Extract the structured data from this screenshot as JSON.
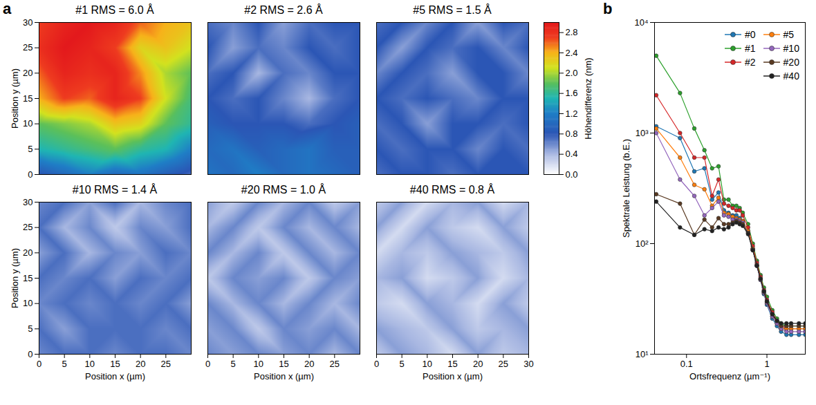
{
  "chart_data": [
    {
      "type": "heatmap",
      "panel": "a",
      "colorbar": {
        "label": "Höhendifferenz (nm)",
        "range": [
          0,
          3.0
        ],
        "ticks": [
          {
            "value": 0,
            "label": "0.0"
          },
          0.4,
          0.8,
          1.2,
          1.6,
          {
            "value": 2,
            "label": "2.0"
          },
          2.4,
          2.8
        ]
      },
      "panels": [
        {
          "title": "#1 RMS = 6.0 Å",
          "ylabel": "Position y (µm)",
          "tick_labels": "y",
          "xlim": [
            0,
            30
          ],
          "ylim": [
            0,
            30
          ],
          "yticks": [
            0,
            5,
            10,
            15,
            20,
            25,
            30
          ],
          "x": [
            0,
            5,
            10,
            15,
            20,
            25,
            30
          ],
          "y": [
            30,
            25,
            20,
            15,
            10,
            5,
            0
          ],
          "z": [
            [
              2.7,
              2.9,
              3.0,
              2.9,
              2.6,
              2.4,
              2.3
            ],
            [
              2.8,
              3.0,
              2.9,
              2.7,
              2.2,
              2.3,
              2.1
            ],
            [
              2.6,
              2.9,
              2.8,
              2.9,
              2.5,
              2.0,
              1.8
            ],
            [
              2.4,
              2.7,
              2.6,
              2.9,
              2.7,
              2.1,
              1.7
            ],
            [
              1.8,
              1.9,
              2.0,
              2.3,
              2.2,
              1.8,
              1.6
            ],
            [
              1.5,
              1.6,
              1.7,
              1.8,
              1.6,
              1.5,
              1.2
            ],
            [
              0.8,
              1.0,
              1.2,
              1.0,
              1.1,
              0.9,
              0.7
            ]
          ]
        },
        {
          "title": "#2 RMS = 2.6 Å",
          "tick_labels": false,
          "xlim": [
            0,
            30
          ],
          "ylim": [
            0,
            30
          ],
          "x": [
            0,
            5,
            10,
            15,
            20,
            25,
            30
          ],
          "y": [
            30,
            25,
            20,
            15,
            10,
            5,
            0
          ],
          "z": [
            [
              0.7,
              0.6,
              0.8,
              0.5,
              0.7,
              0.8,
              0.8
            ],
            [
              0.8,
              0.5,
              0.7,
              0.6,
              0.8,
              0.7,
              0.8
            ],
            [
              0.7,
              0.8,
              0.4,
              0.7,
              0.6,
              0.8,
              0.8
            ],
            [
              0.8,
              0.7,
              0.8,
              0.6,
              0.4,
              0.7,
              0.8
            ],
            [
              0.9,
              0.8,
              0.8,
              0.8,
              0.7,
              0.8,
              0.9
            ],
            [
              1.0,
              1.1,
              0.9,
              1.0,
              1.1,
              0.9,
              0.9
            ],
            [
              1.1,
              1.0,
              1.2,
              1.0,
              1.1,
              1.0,
              0.9
            ]
          ]
        },
        {
          "title": "#5 RMS = 1.5 Å",
          "tick_labels": false,
          "xlim": [
            0,
            30
          ],
          "ylim": [
            0,
            30
          ],
          "x": [
            0,
            5,
            10,
            15,
            20,
            25,
            30
          ],
          "y": [
            30,
            25,
            20,
            15,
            10,
            5,
            0
          ],
          "z": [
            [
              0.7,
              0.8,
              0.6,
              0.8,
              0.5,
              0.8,
              0.7
            ],
            [
              0.8,
              0.5,
              0.8,
              0.7,
              0.8,
              0.6,
              0.8
            ],
            [
              0.6,
              0.8,
              0.7,
              0.5,
              0.8,
              0.8,
              0.6
            ],
            [
              0.8,
              0.7,
              0.8,
              0.7,
              0.6,
              0.8,
              0.8
            ],
            [
              0.7,
              0.8,
              0.5,
              0.8,
              0.8,
              0.7,
              0.8
            ],
            [
              0.8,
              0.7,
              0.8,
              0.8,
              0.6,
              0.8,
              0.7
            ],
            [
              0.7,
              0.8,
              0.8,
              0.7,
              0.8,
              0.8,
              0.8
            ]
          ]
        },
        {
          "title": "#10 RMS = 1.4 Å",
          "xlabel": "Position x (µm)",
          "ylabel": "Position y (µm)",
          "xlim": [
            0,
            30
          ],
          "ylim": [
            0,
            30
          ],
          "xticks": [
            0,
            5,
            10,
            15,
            20,
            25
          ],
          "yticks": [
            0,
            5,
            10,
            15,
            20,
            25,
            30
          ],
          "x": [
            0,
            5,
            10,
            15,
            20,
            25,
            30
          ],
          "y": [
            30,
            25,
            20,
            15,
            10,
            5,
            0
          ],
          "z": [
            [
              0.6,
              0.7,
              0.5,
              0.7,
              0.4,
              0.6,
              0.7
            ],
            [
              0.7,
              0.4,
              0.6,
              0.3,
              0.6,
              0.5,
              0.7
            ],
            [
              0.5,
              0.7,
              0.4,
              0.6,
              0.5,
              0.7,
              0.6
            ],
            [
              0.7,
              0.6,
              0.7,
              0.5,
              0.7,
              0.6,
              0.7
            ],
            [
              0.6,
              0.7,
              0.6,
              0.7,
              0.6,
              0.7,
              0.5
            ],
            [
              0.7,
              0.5,
              0.7,
              0.7,
              0.7,
              0.6,
              0.7
            ],
            [
              0.6,
              0.7,
              0.7,
              0.6,
              0.7,
              0.7,
              0.6
            ]
          ]
        },
        {
          "title": "#20 RMS = 1.0 Å",
          "xlabel": "Position x (µm)",
          "tick_labels": "x",
          "xlim": [
            0,
            30
          ],
          "ylim": [
            0,
            30
          ],
          "xticks": [
            0,
            5,
            10,
            15,
            20,
            25
          ],
          "x": [
            0,
            5,
            10,
            15,
            20,
            25,
            30
          ],
          "y": [
            30,
            25,
            20,
            15,
            10,
            5,
            0
          ],
          "z": [
            [
              0.5,
              0.3,
              0.6,
              0.4,
              0.6,
              0.3,
              0.5
            ],
            [
              0.4,
              0.6,
              0.3,
              0.6,
              0.4,
              0.6,
              0.4
            ],
            [
              0.6,
              0.4,
              0.6,
              0.3,
              0.6,
              0.4,
              0.6
            ],
            [
              0.3,
              0.6,
              0.5,
              0.6,
              0.3,
              0.6,
              0.5
            ],
            [
              0.6,
              0.4,
              0.6,
              0.4,
              0.6,
              0.4,
              0.6
            ],
            [
              0.5,
              0.6,
              0.3,
              0.6,
              0.5,
              0.6,
              0.4
            ],
            [
              0.6,
              0.5,
              0.6,
              0.5,
              0.6,
              0.4,
              0.6
            ]
          ]
        },
        {
          "title": "#40 RMS = 0.8 Å",
          "xlabel": "Position x (µm)",
          "tick_labels": "x",
          "xlim": [
            0,
            30
          ],
          "ylim": [
            0,
            30
          ],
          "xticks": [
            0,
            5,
            10,
            15,
            20,
            25,
            30
          ],
          "x": [
            0,
            5,
            10,
            15,
            20,
            25,
            30
          ],
          "y": [
            30,
            25,
            20,
            15,
            10,
            5,
            0
          ],
          "z": [
            [
              0.3,
              0.5,
              0.2,
              0.4,
              0.5,
              0.2,
              0.4
            ],
            [
              0.5,
              0.2,
              0.5,
              0.3,
              0.2,
              0.5,
              0.3
            ],
            [
              0.2,
              0.4,
              0.3,
              0.5,
              0.4,
              0.3,
              0.5
            ],
            [
              0.4,
              0.5,
              0.2,
              0.3,
              0.5,
              0.2,
              0.4
            ],
            [
              0.3,
              0.2,
              0.5,
              0.4,
              0.2,
              0.5,
              0.3
            ],
            [
              0.5,
              0.4,
              0.3,
              0.5,
              0.3,
              0.4,
              0.5
            ],
            [
              0.3,
              0.5,
              0.4,
              0.2,
              0.5,
              0.3,
              0.4
            ]
          ]
        }
      ]
    },
    {
      "type": "line",
      "panel": "b",
      "xlabel": "Ortsfrequenz (µm⁻¹)",
      "ylabel": "Spektrale Leistung (b.E.)",
      "log": true,
      "legend": "upper right",
      "marker": "circle",
      "xlim": [
        0.04,
        3
      ],
      "ylim": [
        10,
        10000
      ],
      "xticks": [
        0.1,
        1
      ],
      "yticks": [
        {
          "value": 10,
          "label": "10¹"
        },
        {
          "value": 100,
          "label": "10²"
        },
        {
          "value": 1000,
          "label": "10³"
        },
        {
          "value": 10000,
          "label": "10⁴"
        }
      ],
      "x": [
        0.042,
        0.083,
        0.125,
        0.167,
        0.208,
        0.25,
        0.292,
        0.333,
        0.375,
        0.417,
        0.458,
        0.5,
        0.583,
        0.667,
        0.75,
        0.833,
        0.917,
        1.0,
        1.167,
        1.333,
        1.5,
        1.75,
        2.0,
        2.5,
        3.0
      ],
      "series": [
        {
          "name": "#0",
          "color": "#1f77b4",
          "values": [
            1150,
            900,
            450,
            480,
            250,
            290,
            200,
            190,
            180,
            180,
            170,
            160,
            130,
            90,
            63,
            47,
            35,
            28,
            21,
            18,
            16,
            15,
            15,
            15,
            15
          ]
        },
        {
          "name": "#1",
          "color": "#2ca02c",
          "values": [
            5000,
            2300,
            1100,
            700,
            480,
            500,
            250,
            250,
            220,
            220,
            210,
            190,
            150,
            100,
            70,
            52,
            40,
            33,
            25,
            21,
            19,
            18,
            18,
            18,
            18
          ]
        },
        {
          "name": "#2",
          "color": "#d62728",
          "values": [
            2200,
            1000,
            600,
            600,
            270,
            380,
            230,
            220,
            210,
            200,
            200,
            180,
            140,
            95,
            67,
            50,
            38,
            31,
            24,
            20,
            18,
            17,
            17,
            17,
            17
          ]
        },
        {
          "name": "#5",
          "color": "#ff7f0e",
          "values": [
            1100,
            600,
            340,
            310,
            220,
            260,
            190,
            185,
            175,
            170,
            165,
            160,
            130,
            90,
            64,
            48,
            36,
            29,
            22,
            19,
            17,
            17,
            17,
            17,
            17
          ]
        },
        {
          "name": "#10",
          "color": "#9467bd",
          "values": [
            1000,
            380,
            270,
            180,
            210,
            240,
            180,
            175,
            165,
            165,
            160,
            155,
            125,
            88,
            63,
            47,
            36,
            29,
            22,
            19,
            17,
            16,
            16,
            16,
            16
          ]
        },
        {
          "name": "#20",
          "color": "#5a3a22",
          "values": [
            280,
            230,
            120,
            165,
            140,
            170,
            150,
            150,
            155,
            160,
            155,
            150,
            125,
            88,
            64,
            48,
            37,
            30,
            23,
            20,
            18,
            18,
            18,
            18,
            18
          ]
        },
        {
          "name": "#40",
          "color": "#222222",
          "values": [
            240,
            140,
            120,
            135,
            130,
            140,
            135,
            140,
            150,
            155,
            150,
            145,
            122,
            87,
            63,
            48,
            37,
            30,
            23,
            20,
            19,
            19,
            19,
            19,
            19
          ]
        }
      ]
    }
  ]
}
